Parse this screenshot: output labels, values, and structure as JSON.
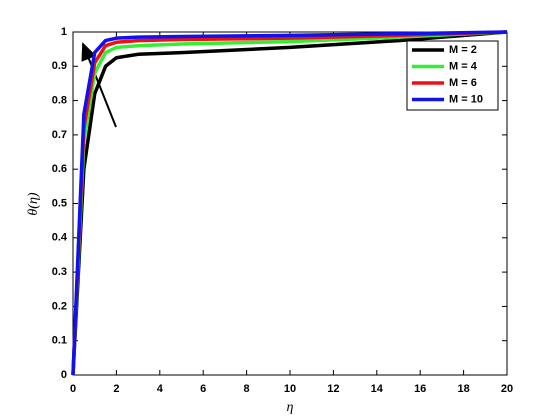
{
  "chart_data": {
    "type": "line",
    "xlabel": "η",
    "ylabel": "θ(η)",
    "x": [
      0,
      0.5,
      1,
      1.5,
      2,
      3,
      5,
      10,
      15,
      20
    ],
    "series": [
      {
        "name": "M = 2",
        "color": "#000000",
        "values": [
          0,
          0.6,
          0.82,
          0.9,
          0.925,
          0.935,
          0.94,
          0.955,
          0.975,
          1
        ]
      },
      {
        "name": "M = 4",
        "color": "#33ee33",
        "values": [
          0,
          0.68,
          0.88,
          0.94,
          0.955,
          0.96,
          0.965,
          0.972,
          0.985,
          1
        ]
      },
      {
        "name": "M = 6",
        "color": "#ee1111",
        "values": [
          0,
          0.72,
          0.91,
          0.96,
          0.97,
          0.975,
          0.978,
          0.982,
          0.99,
          1
        ]
      },
      {
        "name": "M = 10",
        "color": "#1111ee",
        "values": [
          0,
          0.76,
          0.94,
          0.975,
          0.982,
          0.985,
          0.987,
          0.99,
          0.995,
          1
        ]
      }
    ],
    "xlim": [
      0,
      20
    ],
    "xticks": [
      0,
      2,
      4,
      6,
      8,
      10,
      12,
      14,
      16,
      18,
      20
    ],
    "ylim": [
      0,
      1
    ],
    "yticks": [
      0,
      0.1,
      0.2,
      0.3,
      0.4,
      0.5,
      0.6,
      0.7,
      0.8,
      0.9,
      1
    ],
    "grid": false,
    "legend": "upper right"
  }
}
